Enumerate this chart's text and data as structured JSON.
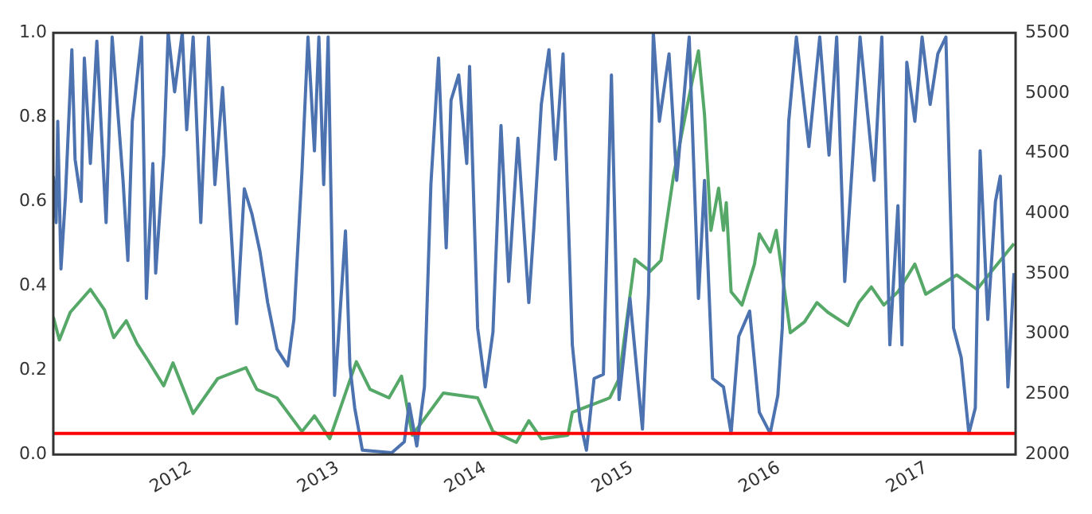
{
  "chart_data": {
    "type": "line",
    "xlim": [
      "2011-01-26",
      "2017-08-10"
    ],
    "xticks": [
      {
        "value": "2012-01-01",
        "label": "2012"
      },
      {
        "value": "2013-01-01",
        "label": "2013"
      },
      {
        "value": "2014-01-01",
        "label": "2014"
      },
      {
        "value": "2015-01-01",
        "label": "2015"
      },
      {
        "value": "2016-01-01",
        "label": "2016"
      },
      {
        "value": "2017-01-01",
        "label": "2017"
      }
    ],
    "ylim": [
      0,
      1
    ],
    "yticks": [
      {
        "value": 0,
        "label": "0.0"
      },
      {
        "value": 0.2,
        "label": "0.2"
      },
      {
        "value": 0.4,
        "label": "0.4"
      },
      {
        "value": 0.6,
        "label": "0.6"
      },
      {
        "value": 0.8,
        "label": "0.8"
      },
      {
        "value": 1,
        "label": "1.0"
      }
    ],
    "y2lim": [
      2000,
      5500
    ],
    "y2ticks": [
      2000,
      2500,
      3000,
      3500,
      4000,
      4500,
      5000,
      5500
    ],
    "grid": false,
    "legend": false,
    "ref_lines": [
      {
        "axis": "y",
        "value": 0.05,
        "color": "#ff0000"
      }
    ],
    "series": [
      {
        "color": "#4c72b0",
        "x": [
          "2011-01-26",
          "2011-02-02",
          "2011-02-06",
          "2011-02-14",
          "2011-02-25",
          "2011-03-13",
          "2011-03-21",
          "2011-04-05",
          "2011-04-13",
          "2011-04-28",
          "2011-05-14",
          "2011-06-06",
          "2011-06-21",
          "2011-07-18",
          "2011-07-30",
          "2011-08-10",
          "2011-09-02",
          "2011-09-14",
          "2011-09-30",
          "2011-10-07",
          "2011-10-27",
          "2011-11-07",
          "2011-11-23",
          "2011-12-12",
          "2011-12-23",
          "2012-01-08",
          "2012-01-27",
          "2012-02-15",
          "2012-03-02",
          "2012-03-21",
          "2012-04-25",
          "2012-05-14",
          "2012-06-02",
          "2012-06-22",
          "2012-07-11",
          "2012-08-03",
          "2012-08-30",
          "2012-09-14",
          "2012-10-04",
          "2012-10-19",
          "2012-11-04",
          "2012-11-15",
          "2012-11-27",
          "2012-12-08",
          "2012-12-24",
          "2013-01-20",
          "2013-01-31",
          "2013-02-12",
          "2013-03-03",
          "2013-05-15",
          "2013-06-15",
          "2013-06-27",
          "2013-07-16",
          "2013-08-04",
          "2013-08-20",
          "2013-09-08",
          "2013-09-27",
          "2013-10-09",
          "2013-10-28",
          "2013-11-17",
          "2013-11-24",
          "2013-12-14",
          "2014-01-02",
          "2014-01-21",
          "2014-02-10",
          "2014-03-01",
          "2014-03-24",
          "2014-04-20",
          "2014-05-02",
          "2014-05-21",
          "2014-06-09",
          "2014-06-25",
          "2014-07-14",
          "2014-08-06",
          "2014-08-25",
          "2014-09-10",
          "2014-09-29",
          "2014-10-22",
          "2014-11-11",
          "2014-11-30",
          "2014-12-27",
          "2015-01-27",
          "2015-02-11",
          "2015-02-23",
          "2015-03-10",
          "2015-04-03",
          "2015-04-22",
          "2015-05-23",
          "2015-06-15",
          "2015-06-30",
          "2015-07-20",
          "2015-08-16",
          "2015-09-04",
          "2015-09-23",
          "2015-10-20",
          "2015-11-13",
          "2015-12-10",
          "2015-12-29",
          "2016-01-09",
          "2016-01-25",
          "2016-02-13",
          "2016-03-15",
          "2016-04-11",
          "2016-05-04",
          "2016-05-23",
          "2016-06-12",
          "2016-07-01",
          "2016-07-20",
          "2016-08-24",
          "2016-09-12",
          "2016-10-02",
          "2016-10-22",
          "2016-11-01",
          "2016-11-13",
          "2016-12-03",
          "2016-12-21",
          "2017-01-10",
          "2017-01-29",
          "2017-02-18",
          "2017-03-09",
          "2017-03-28",
          "2017-04-16",
          "2017-05-02",
          "2017-05-14",
          "2017-06-02",
          "2017-06-21",
          "2017-07-03",
          "2017-07-22",
          "2017-08-06"
        ],
        "values": [
          0.66,
          0.55,
          0.79,
          0.44,
          0.61,
          0.96,
          0.7,
          0.6,
          0.94,
          0.69,
          0.98,
          0.55,
          0.99,
          0.65,
          0.46,
          0.79,
          0.99,
          0.37,
          0.69,
          0.43,
          0.71,
          1,
          0.86,
          1,
          0.77,
          0.99,
          0.55,
          0.99,
          0.64,
          0.87,
          0.31,
          0.63,
          0.57,
          0.48,
          0.36,
          0.25,
          0.21,
          0.32,
          0.67,
          0.99,
          0.72,
          0.99,
          0.64,
          0.99,
          0.14,
          0.53,
          0.21,
          0.11,
          0.01,
          0.004,
          0.03,
          0.12,
          0.02,
          0.16,
          0.64,
          0.94,
          0.49,
          0.84,
          0.9,
          0.69,
          0.92,
          0.3,
          0.16,
          0.29,
          0.78,
          0.41,
          0.75,
          0.36,
          0.53,
          0.83,
          0.96,
          0.7,
          0.95,
          0.26,
          0.08,
          0.01,
          0.18,
          0.19,
          0.9,
          0.13,
          0.37,
          0.06,
          0.38,
          1,
          0.79,
          0.95,
          0.65,
          0.99,
          0.37,
          0.65,
          0.18,
          0.16,
          0.05,
          0.28,
          0.34,
          0.1,
          0.05,
          0.14,
          0.3,
          0.79,
          0.99,
          0.73,
          0.99,
          0.71,
          0.99,
          0.41,
          0.69,
          0.99,
          0.65,
          0.99,
          0.26,
          0.59,
          0.26,
          0.93,
          0.79,
          0.99,
          0.83,
          0.95,
          0.99,
          0.3,
          0.23,
          0.05,
          0.11,
          0.72,
          0.32,
          0.6,
          0.66,
          0.16,
          0.43
        ]
      },
      {
        "color": "#55a868",
        "axis": "y2",
        "x": [
          "2011-01-26",
          "2011-02-10",
          "2011-03-09",
          "2011-04-28",
          "2011-06-02",
          "2011-06-25",
          "2011-07-26",
          "2011-08-22",
          "2011-09-18",
          "2011-10-27",
          "2011-11-19",
          "2012-01-08",
          "2012-03-09",
          "2012-05-18",
          "2012-06-14",
          "2012-08-03",
          "2012-10-04",
          "2012-11-04",
          "2012-12-12",
          "2013-02-16",
          "2013-03-22",
          "2013-05-08",
          "2013-06-08",
          "2013-07-05",
          "2013-09-20",
          "2013-12-14",
          "2014-01-21",
          "2014-03-20",
          "2014-04-20",
          "2014-05-21",
          "2014-07-26",
          "2014-08-06",
          "2014-09-29",
          "2014-11-07",
          "2014-11-30",
          "2015-01-08",
          "2015-02-15",
          "2015-03-14",
          "2015-04-14",
          "2015-05-19",
          "2015-06-15",
          "2015-06-30",
          "2015-07-16",
          "2015-08-04",
          "2015-08-16",
          "2015-08-23",
          "2015-09-04",
          "2015-10-01",
          "2015-11-01",
          "2015-11-13",
          "2015-12-10",
          "2015-12-25",
          "2016-01-29",
          "2016-03-04",
          "2016-04-04",
          "2016-05-01",
          "2016-06-20",
          "2016-07-17",
          "2016-08-17",
          "2016-09-17",
          "2016-10-22",
          "2016-12-03",
          "2016-12-30",
          "2017-03-17",
          "2017-05-06",
          "2017-08-06"
        ],
        "values": [
          3140,
          2950,
          3180,
          3370,
          3200,
          2970,
          3110,
          2920,
          2780,
          2570,
          2760,
          2340,
          2630,
          2720,
          2540,
          2470,
          2190,
          2320,
          2130,
          2770,
          2540,
          2470,
          2650,
          2160,
          2510,
          2470,
          2190,
          2100,
          2280,
          2130,
          2160,
          2350,
          2420,
          2470,
          2630,
          3620,
          3520,
          3610,
          4310,
          4910,
          5350,
          4820,
          3860,
          4210,
          3860,
          4090,
          3350,
          3240,
          3580,
          3830,
          3680,
          3860,
          3010,
          3100,
          3260,
          3180,
          3070,
          3260,
          3390,
          3240,
          3350,
          3580,
          3330,
          3490,
          3370,
          3750
        ]
      }
    ]
  }
}
